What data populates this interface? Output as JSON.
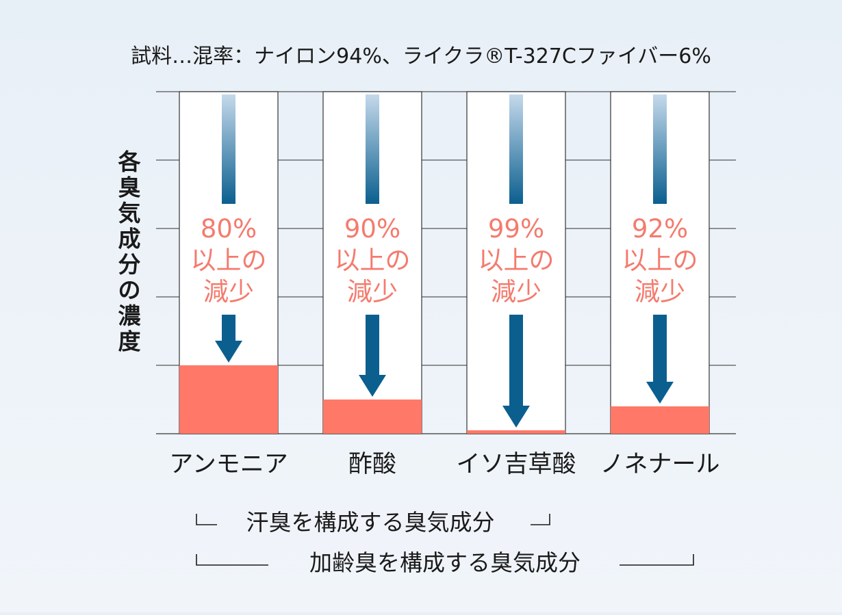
{
  "chart_data": {
    "type": "bar",
    "title": "試料…混率：ナイロン94%、ライクラ®T-327Cファイバー6%",
    "ylabel": "各臭気成分の濃度",
    "ylim": [
      0,
      100
    ],
    "grid": true,
    "categories": [
      "アンモニア",
      "酢酸",
      "イソ吉草酸",
      "ノネナール"
    ],
    "values": [
      20,
      10,
      1,
      8
    ],
    "reduction_labels": [
      [
        "80%",
        "以上の",
        "減少"
      ],
      [
        "90%",
        "以上の",
        "減少"
      ],
      [
        "99%",
        "以上の",
        "減少"
      ],
      [
        "92%",
        "以上の",
        "減少"
      ]
    ],
    "groups": [
      {
        "label": "汗臭を構成する臭気成分",
        "categories": [
          "アンモニア",
          "酢酸"
        ]
      },
      {
        "label": "加齢臭を構成する臭気成分",
        "categories": [
          "アンモニア",
          "酢酸",
          "イソ吉草酸",
          "ノネナール"
        ]
      }
    ]
  },
  "colors": {
    "bar": "#ff7868",
    "reduction_text": "#f47b6e",
    "arrow_top": "#c5d9eb",
    "arrow_bottom": "#0b5f8f",
    "grid": "#555555"
  }
}
